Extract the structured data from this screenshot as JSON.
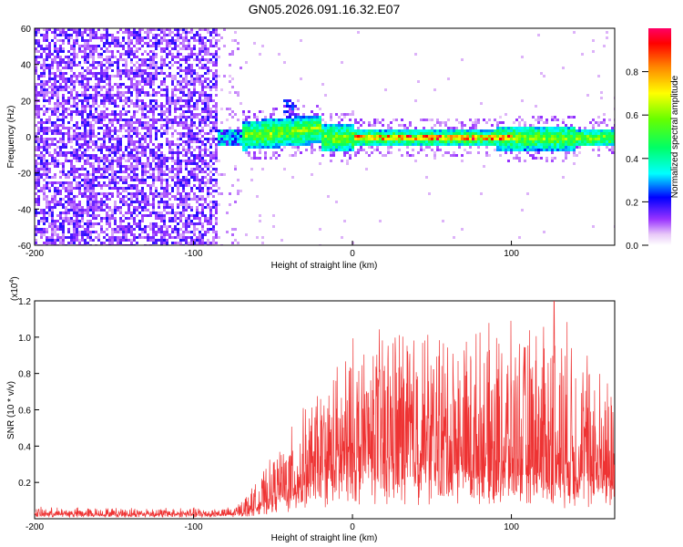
{
  "title": "GN05.2026.091.16.32.E07",
  "chart_data": [
    {
      "type": "heatmap",
      "xlabel": "Height of straight line (km)",
      "ylabel": "Frequency (Hz)",
      "xlim": [
        -200,
        165
      ],
      "ylim": [
        -60,
        60
      ],
      "x_ticks": [
        "-200",
        "-100",
        "0",
        "100"
      ],
      "y_ticks": [
        "-60",
        "-40",
        "-20",
        "0",
        "20",
        "40",
        "60"
      ],
      "colorbar": {
        "label": "Normalized spectral amplitude",
        "range": [
          0.0,
          1.0
        ],
        "ticks": [
          "0.0",
          "0.2",
          "0.4",
          "0.6",
          "0.8"
        ]
      },
      "noise_region_end_km": -85,
      "signal_band_center_hz": 0,
      "signal_band_halfwidth_hz": 5,
      "peak_amplitude": 0.95,
      "peak_region_km": [
        0,
        100
      ]
    },
    {
      "type": "line",
      "xlabel": "Height of straight line (km)",
      "ylabel": "SNR (10 * v/v)",
      "scale_label": "(x10",
      "scale_exponent": "4",
      "xlim": [
        -200,
        165
      ],
      "ylim": [
        0,
        1.2
      ],
      "x_ticks": [
        "-200",
        "-100",
        "0",
        "100"
      ],
      "y_ticks": [
        "0.2",
        "0.4",
        "0.6",
        "0.8",
        "1.0",
        "1.2"
      ],
      "color": "#ee3333",
      "envelope": [
        {
          "x": -200,
          "base": 0.02,
          "amp": 0.04
        },
        {
          "x": -75,
          "base": 0.02,
          "amp": 0.04
        },
        {
          "x": -60,
          "base": 0.05,
          "amp": 0.15
        },
        {
          "x": -40,
          "base": 0.12,
          "amp": 0.35
        },
        {
          "x": -20,
          "base": 0.18,
          "amp": 0.55
        },
        {
          "x": 0,
          "base": 0.22,
          "amp": 0.75
        },
        {
          "x": 30,
          "base": 0.25,
          "amp": 0.85
        },
        {
          "x": 70,
          "base": 0.22,
          "amp": 0.8
        },
        {
          "x": 110,
          "base": 0.2,
          "amp": 0.85
        },
        {
          "x": 130,
          "base": 0.18,
          "amp": 0.95
        },
        {
          "x": 165,
          "base": 0.18,
          "amp": 0.55
        }
      ],
      "max_value": 1.2
    }
  ]
}
